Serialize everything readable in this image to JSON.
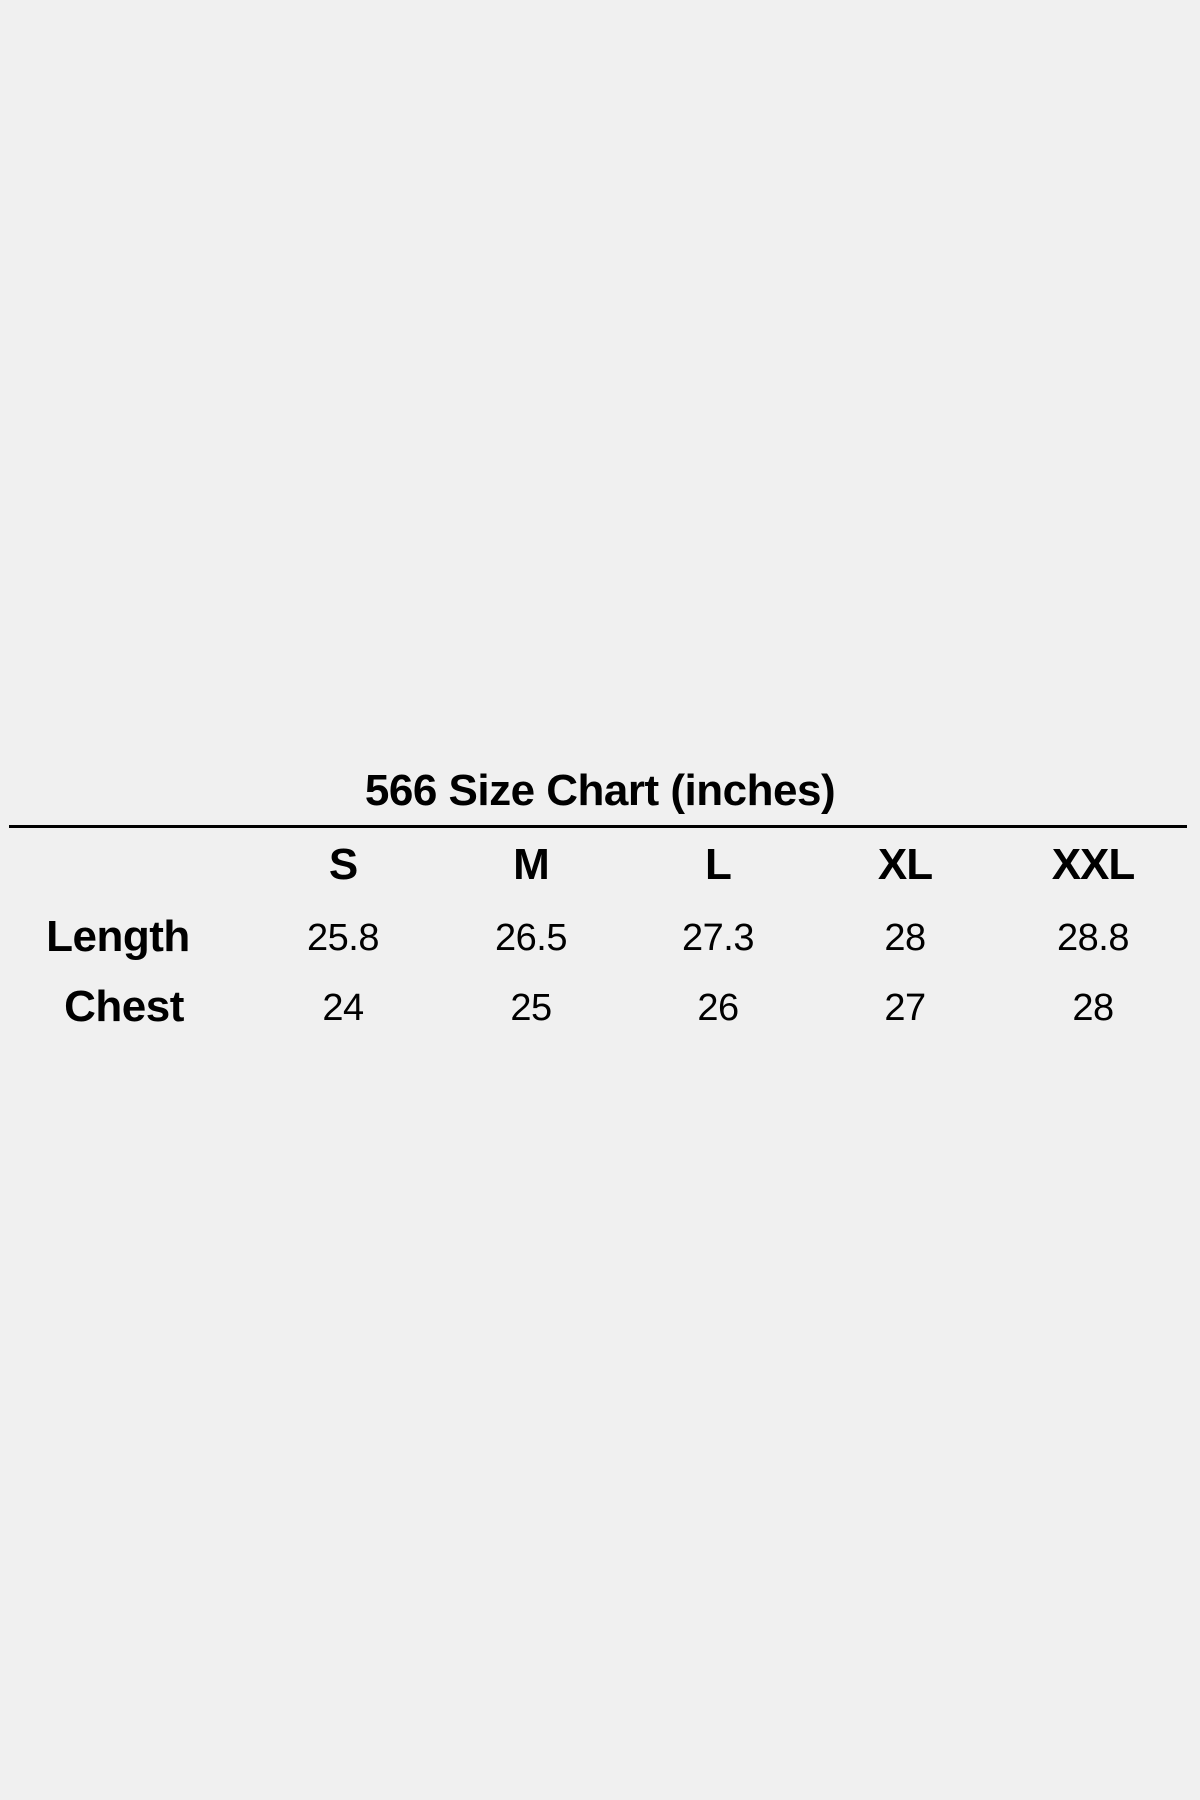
{
  "title": "566 Size Chart (inches)",
  "sizes": [
    "S",
    "M",
    "L",
    "XL",
    "XXL"
  ],
  "rows": [
    {
      "label": "Length",
      "values": [
        "25.8",
        "26.5",
        "27.3",
        "28",
        "28.8"
      ]
    },
    {
      "label": "Chest",
      "values": [
        "24",
        "25",
        "26",
        "27",
        "28"
      ]
    }
  ]
}
